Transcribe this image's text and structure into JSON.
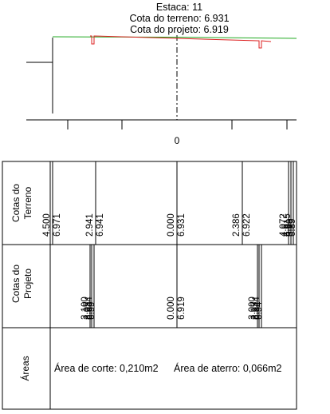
{
  "header": {
    "station": "Estaca: 11",
    "ground_elevation": "Cota do terreno: 6.931",
    "design_elevation": "Cota do projeto: 6.919"
  },
  "axis": {
    "center_label": "0"
  },
  "rows": {
    "ground": {
      "label_line1": "Cotas do",
      "label_line2": "Terreno"
    },
    "design": {
      "label_line1": "Cotas do",
      "label_line2": "Projeto"
    },
    "areas": {
      "label": "Áreas"
    }
  },
  "ground_values": [
    {
      "offset": "4.500",
      "elevation": "6.971"
    },
    {
      "offset": "2.941",
      "elevation": "6.941"
    },
    {
      "offset": "0.000",
      "elevation": "6.931"
    },
    {
      "offset": "2.386",
      "elevation": "6.922"
    },
    {
      "offset": "4.072",
      "elevation": "6.915"
    },
    {
      "offset": "4.5",
      "elevation": "6.90"
    },
    {
      "offset": "4.9",
      "elevation": "6.89"
    }
  ],
  "design_values": [
    {
      "offset": "3.100",
      "elevation": "6.934"
    },
    {
      "offset": "3.05",
      "elevation": "6.99"
    },
    {
      "offset": "0.000",
      "elevation": "6.919"
    },
    {
      "offset": "3.000",
      "elevation": "6.944"
    },
    {
      "offset": "3.15",
      "elevation": "6.94"
    }
  ],
  "areas": {
    "cut": "Área de corte: 0,210m2",
    "fill": "Área de aterro: 0,066m2"
  },
  "colors": {
    "ground_line": "#22aa22",
    "design_line": "#dd2222"
  }
}
